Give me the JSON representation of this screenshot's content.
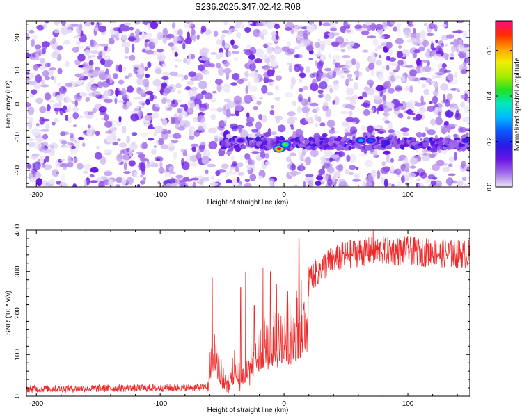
{
  "title": "S236.2025.347.02.42.R08",
  "chart_data": [
    {
      "type": "heatmap",
      "title": "S236.2025.347.02.42.R08",
      "xlabel": "Height of straight line (km)",
      "ylabel": "Frequency (Hz)",
      "xlim": [
        -208,
        150
      ],
      "ylim": [
        -25,
        25
      ],
      "xticks": [
        -200,
        -100,
        0,
        100
      ],
      "yticks": [
        -20,
        -10,
        0,
        10,
        20
      ],
      "colorbar": {
        "label": "Normalized spectral amplitude",
        "range": [
          0,
          0.73
        ],
        "ticks": [
          "0.0",
          "0.2",
          "0.4",
          "0.6"
        ],
        "colors": [
          "#ece6f6",
          "#a06be8",
          "#6a14e6",
          "#2a1ae6",
          "#0b55ff",
          "#00b8ff",
          "#00e8c0",
          "#22e020",
          "#a8ec00",
          "#f0ee00",
          "#ff9c00",
          "#ff2a00",
          "#ff0a80"
        ]
      },
      "signal_band": {
        "frequency_hz": -12,
        "start_km": -50,
        "peaks": [
          {
            "x_km": -4,
            "freq_hz": -13.5,
            "amplitude": 0.72
          },
          {
            "x_km": 1,
            "freq_hz": -12.2,
            "amplitude": 0.45
          },
          {
            "x_km": 62,
            "freq_hz": -11,
            "amplitude": 0.3
          },
          {
            "x_km": 70,
            "freq_hz": -11,
            "amplitude": 0.25
          },
          {
            "x_km": 147,
            "freq_hz": -11,
            "amplitude": 0.2
          },
          {
            "x_km": -35,
            "freq_hz": -11,
            "amplitude": 0.15
          }
        ]
      }
    },
    {
      "type": "line",
      "xlabel": "Height of straight line (km)",
      "ylabel": "SNR (10 * v/v)",
      "xlim": [
        -208,
        150
      ],
      "ylim": [
        0,
        400
      ],
      "xticks": [
        -200,
        -100,
        0,
        100
      ],
      "yticks": [
        0,
        100,
        200,
        300,
        400
      ],
      "series": [
        {
          "name": "SNR",
          "color": "#ee2a2a",
          "profile": {
            "x": [
              -208,
              -150,
              -100,
              -62,
              -58,
              -55,
              -52,
              -45,
              -40,
              -35,
              -30,
              -25,
              -18,
              -10,
              -5,
              0,
              5,
              10,
              15,
              20,
              30,
              40,
              50,
              60,
              70,
              80,
              90,
              100,
              110,
              120,
              130,
              140,
              150
            ],
            "y": [
              14,
              15,
              16,
              18,
              150,
              150,
              80,
              40,
              90,
              60,
              100,
              120,
              160,
              180,
              200,
              215,
              230,
              245,
              262,
              280,
              310,
              330,
              340,
              345,
              350,
              350,
              348,
              350,
              347,
              345,
              343,
              342,
              343
            ]
          },
          "spikes": [
            {
              "x": -58,
              "y": 285
            },
            {
              "x": -35,
              "y": 262
            },
            {
              "x": -31,
              "y": 300
            },
            {
              "x": -24,
              "y": 218
            },
            {
              "x": -17,
              "y": 310
            },
            {
              "x": -11,
              "y": 300
            },
            {
              "x": -6,
              "y": 270
            },
            {
              "x": 12,
              "y": 380
            },
            {
              "x": 72,
              "y": 400
            }
          ]
        }
      ]
    }
  ]
}
